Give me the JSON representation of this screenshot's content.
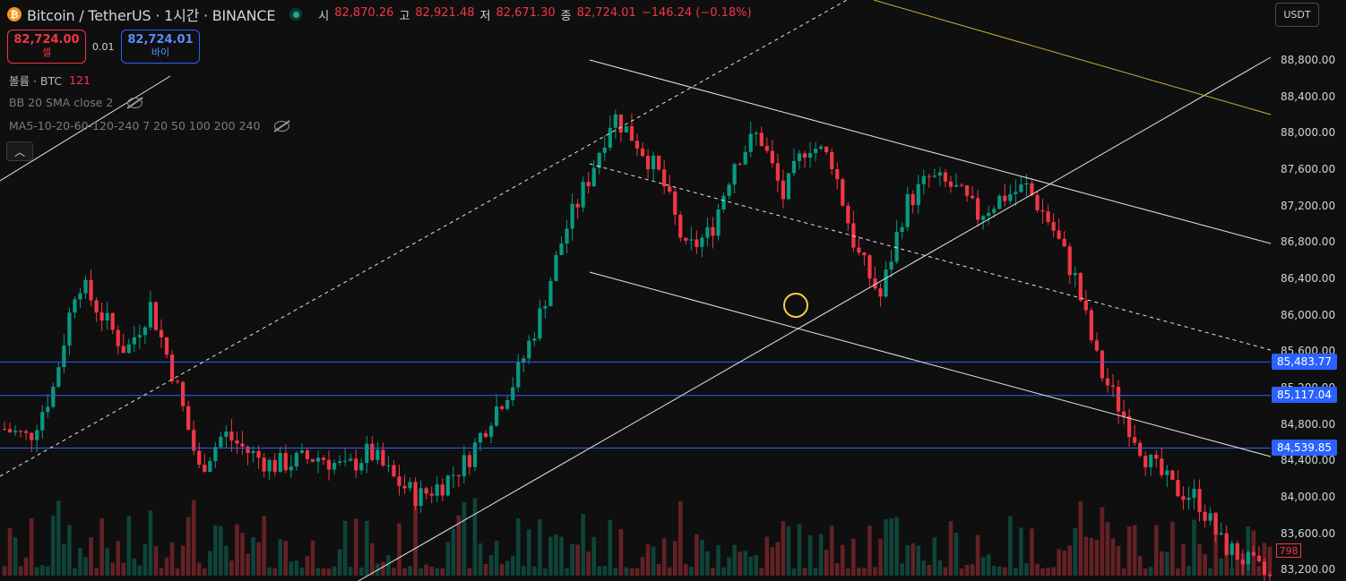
{
  "header": {
    "symbol_title": "Bitcoin / TetherUS · 1시간 · BINANCE",
    "ohlc": [
      {
        "label": "시",
        "value": "82,870.26"
      },
      {
        "label": "고",
        "value": "82,921.48"
      },
      {
        "label": "저",
        "value": "82,671.30"
      },
      {
        "label": "종",
        "value": "82,724.01"
      }
    ],
    "change": "−146.24 (−0.18%)"
  },
  "trade": {
    "sell_price": "82,724.00",
    "sell_label": "셀",
    "spread": "0.01",
    "buy_price": "82,724.01",
    "buy_label": "바이"
  },
  "indicators": {
    "volume_name": "볼륨 · BTC",
    "volume_value": "121",
    "bb": "BB 20 SMA close 2",
    "ma": "MA5-10-20-60-120-240 7 20 50 100 200 240"
  },
  "currency": "USDT",
  "price_axis": {
    "ticks": [
      "88,800.00",
      "88,400.00",
      "88,000.00",
      "87,600.00",
      "87,200.00",
      "86,800.00",
      "86,400.00",
      "86,000.00",
      "85,600.00",
      "85,200.00",
      "84,800.00",
      "84,400.00",
      "84,000.00",
      "83,600.00",
      "83,200.00"
    ],
    "levels": [
      "85,483.77",
      "85,117.04",
      "84,539.85"
    ],
    "volume_tag": "798"
  },
  "colors": {
    "up": "#089981",
    "down": "#f23645",
    "level_line": "#2962ff",
    "channel": "#e6e6e6",
    "top_trend": "#c9b23a",
    "marker": "#f5d33b"
  },
  "chart_data": {
    "type": "candlestick",
    "timeframe": "1시간",
    "ylim": [
      83100,
      89200
    ],
    "horizontal_levels": [
      85483.77,
      85117.04,
      84539.85
    ],
    "close_path": [
      84750,
      84650,
      85200,
      86400,
      86000,
      85600,
      86100,
      85300,
      84300,
      84700,
      84500,
      84350,
      84400,
      84450,
      84300,
      84500,
      84200,
      84000,
      84150,
      84400,
      84900,
      85300,
      86000,
      86900,
      87500,
      88200,
      87900,
      87500,
      86700,
      86900,
      87700,
      88000,
      87300,
      87900,
      87700,
      86700,
      86200,
      87200,
      87500,
      87400,
      87100,
      87300,
      87400,
      87000,
      86400,
      85400,
      84900,
      84400,
      84100,
      84000,
      83500,
      83300,
      83100
    ]
  }
}
